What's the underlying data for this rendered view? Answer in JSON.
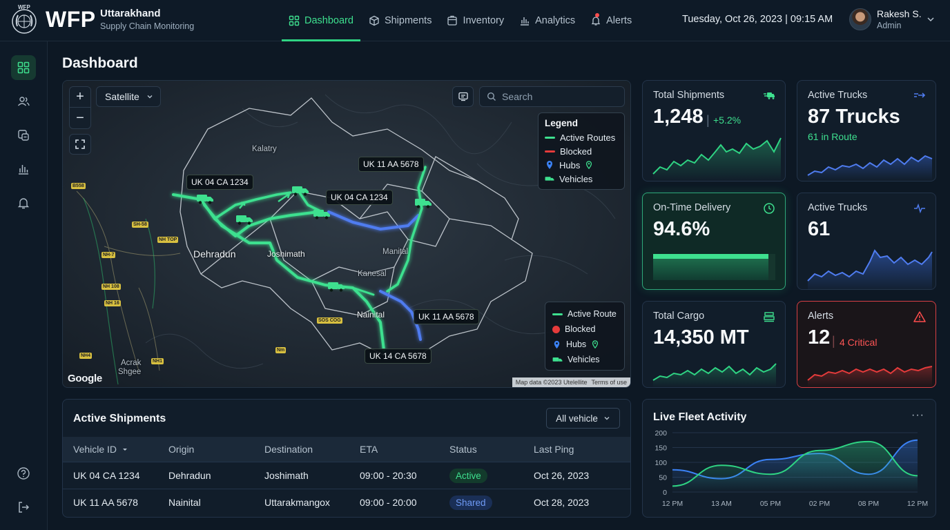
{
  "header": {
    "logo_small": "WFP",
    "brand": "WFP",
    "title": "Uttarakhand",
    "subtitle": "Supply Chain Monitoring",
    "datetime": "Tuesday, Oct 26, 2023 | 09:15 AM",
    "user_name": "Rakesh S.",
    "user_role": "Admin"
  },
  "nav": [
    {
      "label": "Dashboard",
      "icon": "grid-icon",
      "active": true
    },
    {
      "label": "Shipments",
      "icon": "box-icon"
    },
    {
      "label": "Inventory",
      "icon": "inventory-icon"
    },
    {
      "label": "Analytics",
      "icon": "bar-chart-icon"
    },
    {
      "label": "Alerts",
      "icon": "bell-icon"
    }
  ],
  "sidebar": [
    "dashboard-icon",
    "users-icon",
    "shipments-icon",
    "analytics-icon",
    "alerts-icon",
    "help-icon",
    "logout-icon"
  ],
  "page_title": "Dashboard",
  "map": {
    "map_type": "Satellite",
    "search_placeholder": "Search",
    "legend_title": "Legend",
    "legend": [
      "Active Routes",
      "Blocked",
      "Hubs",
      "Vehicles"
    ],
    "legend2": [
      "Active Route",
      "Blocked",
      "Hubs",
      "Vehicles"
    ],
    "truck_labels": [
      "UK 04 CA 1234",
      "UK 11 AA 5678",
      "UK 04 CA 1234",
      "UK 11 AA 5678",
      "UK 14 CA 5678"
    ],
    "cities": [
      "Dehradun",
      "Joshimath",
      "Nainital",
      "Manital",
      "Kanesal",
      "Kalatry",
      "Acrak",
      "Shgee"
    ],
    "road_badges": [
      "B558",
      "SH-58",
      "NH-7",
      "NH TOP",
      "NH 108",
      "NH 16",
      "SOS COG",
      "Nm",
      "NH4",
      "NH1"
    ],
    "google": "Google",
    "attribution": "Map data ©2023 Utelellite",
    "terms": "Terms of use",
    "colors": {
      "active": "#3ee08f",
      "blocked": "#e53b3b",
      "hub": "#3b82f6",
      "vehicle": "#2fd483"
    }
  },
  "cards": {
    "total_shipments": {
      "label": "Total Shipments",
      "value": "1,248",
      "change": "+5.2%"
    },
    "active_trucks": {
      "label": "Active Trucks",
      "value": "87 Trucks",
      "sub": "61 in Route"
    },
    "on_time": {
      "label": "On-Time Delivery",
      "value": "94.6%",
      "progress": 0.946
    },
    "active_trucks2": {
      "label": "Active Trucks",
      "value": "61"
    },
    "total_cargo": {
      "label": "Total Cargo",
      "value": "14,350 MT"
    },
    "alerts": {
      "label": "Alerts",
      "value": "12",
      "sub": "4 Critical"
    }
  },
  "shipments": {
    "title": "Active Shipments",
    "filter": "All vehicle",
    "columns": [
      "Vehicle ID",
      "Origin",
      "Destination",
      "ETA",
      "Status",
      "Last Ping"
    ],
    "rows": [
      {
        "vehicle": "UK 04 CA 1234",
        "origin": "Dehradun",
        "destination": "Joshimath",
        "eta": "09:00 - 20:30",
        "status": "Active",
        "ping": "Oct 26, 2023"
      },
      {
        "vehicle": "UK 11 AA 5678",
        "origin": "Nainital",
        "destination": "Uttarakmangox",
        "eta": "09:00 - 20:00",
        "status": "Shared",
        "ping": "Oct 28, 2023"
      }
    ]
  },
  "fleet": {
    "title": "Live Fleet Activity",
    "more": "···",
    "chart_data": {
      "type": "line",
      "x": [
        "12 PM",
        "13 AM",
        "05 PM",
        "02 PM",
        "08 PM",
        "12 PM"
      ],
      "ylim": [
        0,
        200
      ],
      "yticks": [
        0,
        50,
        100,
        150,
        200
      ],
      "series": [
        {
          "values": [
            75,
            45,
            110,
            130,
            60,
            175
          ],
          "color": "#3b82f6"
        },
        {
          "values": [
            20,
            90,
            60,
            140,
            170,
            55
          ],
          "color": "#2fd483"
        }
      ]
    }
  }
}
